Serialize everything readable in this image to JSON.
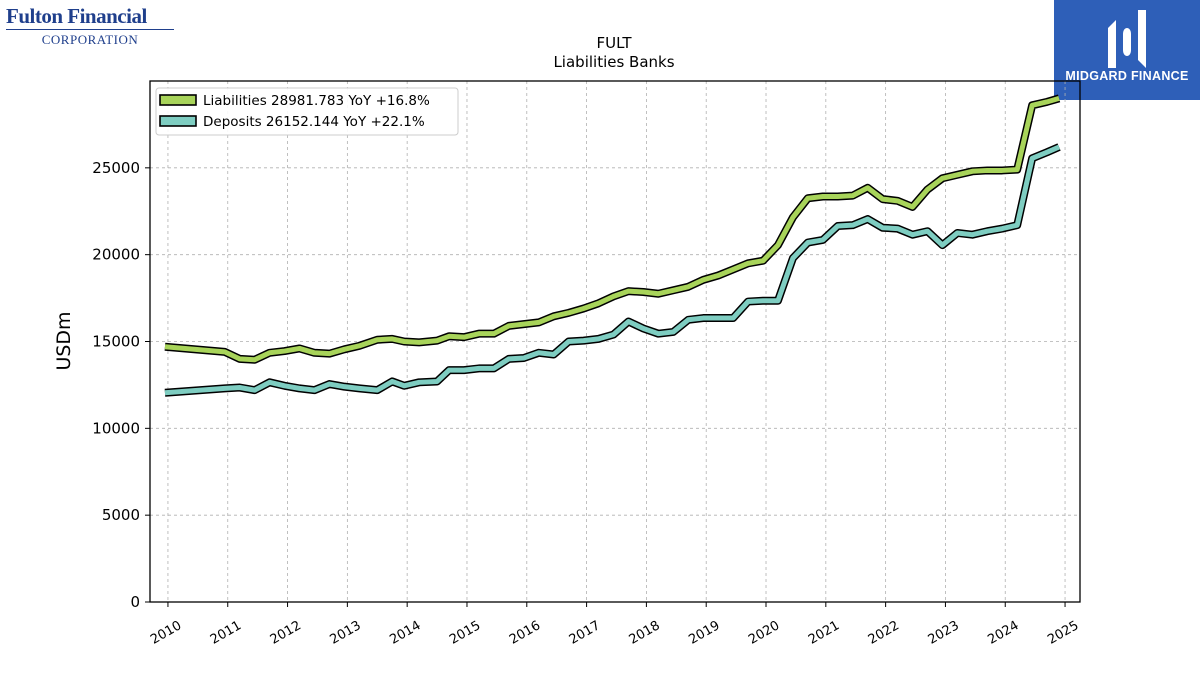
{
  "branding": {
    "left_logo_name": "Fulton Financial",
    "left_logo_sub": "CORPORATION",
    "right_logo_name": "MIDGARD FINANCE"
  },
  "chart_data": {
    "type": "line",
    "title": "FULT",
    "subtitle": "Liabilities Banks",
    "xlabel": "",
    "ylabel": "USDm",
    "xlim": [
      2009.7,
      2025.25
    ],
    "ylim": [
      0,
      30000
    ],
    "x_ticks": [
      2010,
      2011,
      2012,
      2013,
      2014,
      2015,
      2016,
      2017,
      2018,
      2019,
      2020,
      2021,
      2022,
      2023,
      2024,
      2025
    ],
    "y_ticks": [
      0,
      5000,
      10000,
      15000,
      20000,
      25000
    ],
    "grid": true,
    "legend_position": "upper-left",
    "series": [
      {
        "name": "Liabilities",
        "legend_label": "Liabilities  28981.783 YoY +16.8%",
        "color": "#a8d45a",
        "x": [
          2009.95,
          2010.95,
          2011.2,
          2011.45,
          2011.7,
          2011.95,
          2012.2,
          2012.45,
          2012.7,
          2012.95,
          2013.2,
          2013.5,
          2013.75,
          2013.95,
          2014.2,
          2014.5,
          2014.7,
          2014.95,
          2015.2,
          2015.45,
          2015.7,
          2015.95,
          2016.2,
          2016.45,
          2016.7,
          2016.95,
          2017.2,
          2017.45,
          2017.7,
          2017.95,
          2018.2,
          2018.45,
          2018.7,
          2018.95,
          2019.2,
          2019.45,
          2019.7,
          2019.95,
          2020.2,
          2020.45,
          2020.7,
          2020.95,
          2021.2,
          2021.45,
          2021.7,
          2021.95,
          2022.2,
          2022.45,
          2022.7,
          2022.95,
          2023.2,
          2023.45,
          2023.7,
          2023.95,
          2024.2,
          2024.45,
          2024.7,
          2024.9
        ],
        "values": [
          14700,
          14400,
          14000,
          13950,
          14350,
          14450,
          14600,
          14350,
          14300,
          14550,
          14750,
          15100,
          15150,
          15000,
          14950,
          15050,
          15300,
          15250,
          15450,
          15450,
          15900,
          16000,
          16100,
          16450,
          16650,
          16900,
          17200,
          17600,
          17900,
          17850,
          17750,
          17950,
          18150,
          18550,
          18800,
          19150,
          19500,
          19650,
          20550,
          22150,
          23250,
          23350,
          23350,
          23400,
          23850,
          23200,
          23100,
          22750,
          23750,
          24400,
          24600,
          24800,
          24850,
          24850,
          24900,
          28600,
          28800,
          29000
        ]
      },
      {
        "name": "Deposits",
        "legend_label": "Deposits  26152.144 YoY +22.1%",
        "color": "#7ecdc1",
        "x": [
          2009.95,
          2010.95,
          2011.2,
          2011.45,
          2011.7,
          2011.95,
          2012.2,
          2012.45,
          2012.7,
          2012.95,
          2013.2,
          2013.5,
          2013.75,
          2013.95,
          2014.2,
          2014.5,
          2014.7,
          2014.95,
          2015.2,
          2015.45,
          2015.7,
          2015.95,
          2016.2,
          2016.45,
          2016.7,
          2016.95,
          2017.2,
          2017.45,
          2017.7,
          2017.95,
          2018.2,
          2018.45,
          2018.7,
          2018.95,
          2019.2,
          2019.45,
          2019.7,
          2019.95,
          2020.2,
          2020.45,
          2020.7,
          2020.95,
          2021.2,
          2021.45,
          2021.7,
          2021.95,
          2022.2,
          2022.45,
          2022.7,
          2022.95,
          2023.2,
          2023.45,
          2023.7,
          2023.95,
          2024.2,
          2024.45,
          2024.7,
          2024.9
        ],
        "values": [
          12050,
          12300,
          12350,
          12200,
          12650,
          12450,
          12300,
          12200,
          12550,
          12400,
          12300,
          12200,
          12700,
          12450,
          12650,
          12700,
          13350,
          13350,
          13450,
          13450,
          14000,
          14050,
          14350,
          14250,
          15000,
          15050,
          15150,
          15400,
          16150,
          15750,
          15450,
          15550,
          16250,
          16350,
          16350,
          16350,
          17300,
          17350,
          17350,
          19800,
          20700,
          20850,
          21650,
          21700,
          22050,
          21550,
          21500,
          21150,
          21350,
          20550,
          21250,
          21150,
          21350,
          21500,
          21700,
          25550,
          25900,
          26200
        ]
      }
    ]
  }
}
